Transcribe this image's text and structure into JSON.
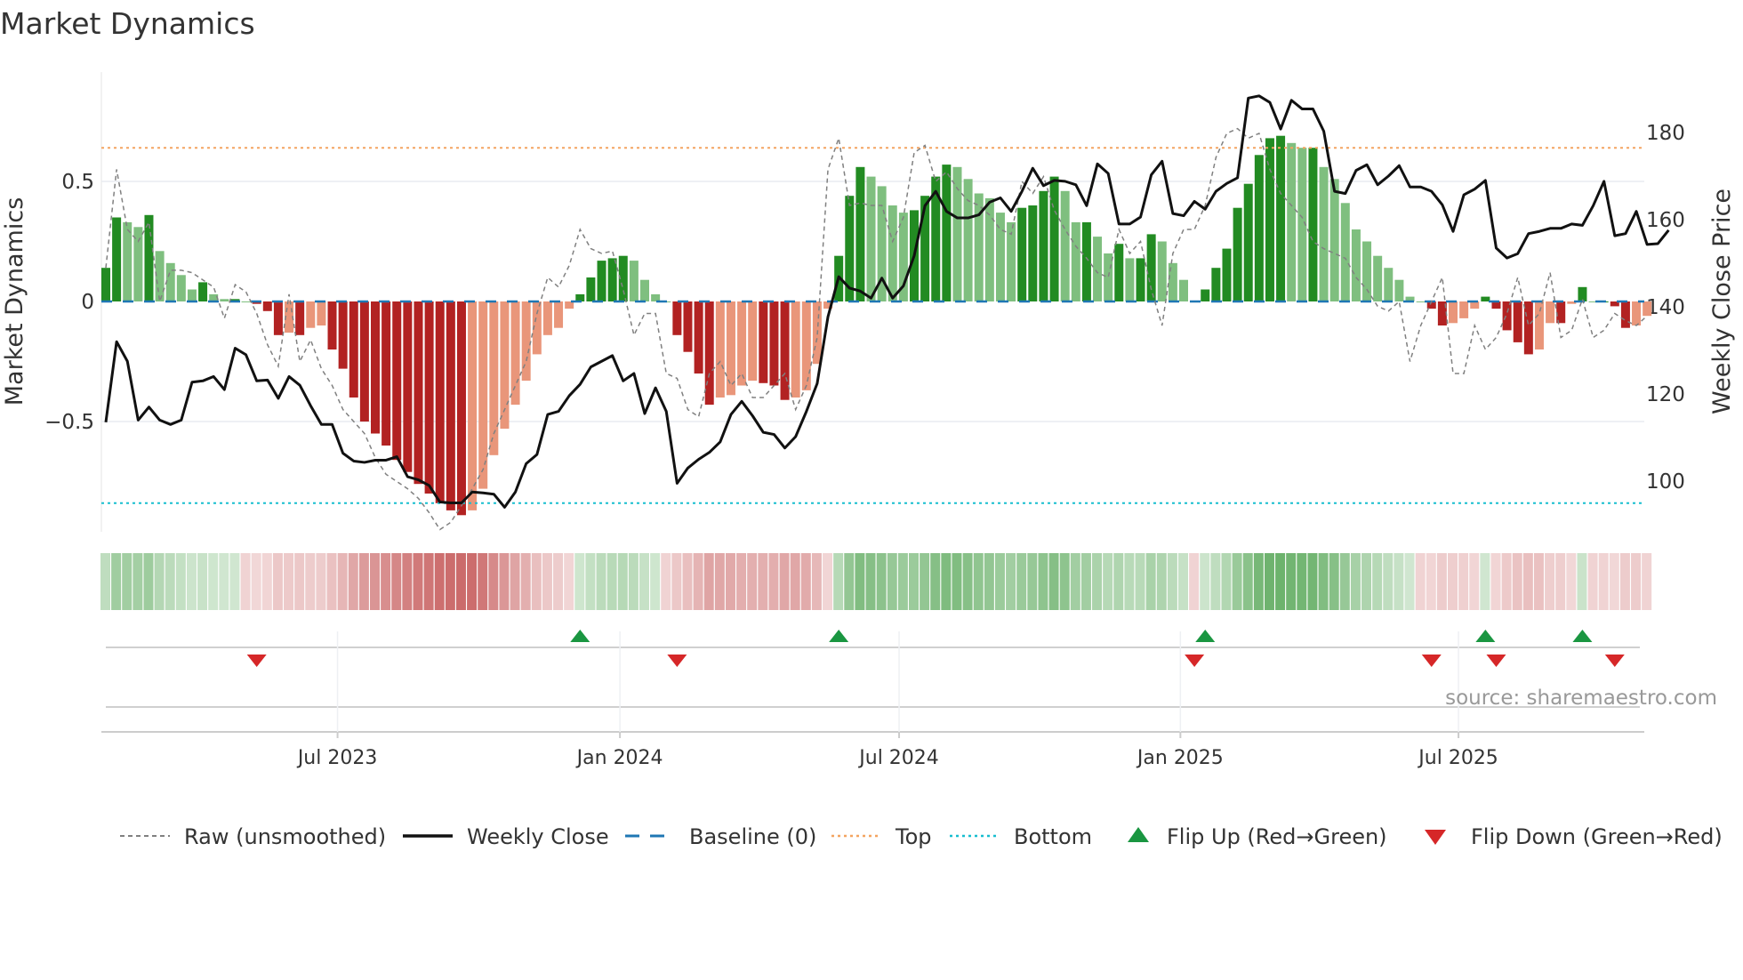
{
  "title": "Market Dynamics",
  "source": "source: sharemaestro.com",
  "colors": {
    "up_strong": "#228b22",
    "up_weak": "#7fbf7f",
    "down_strong": "#b22222",
    "down_weak": "#e9967a",
    "top": "#f4a460",
    "bottom": "#17becf",
    "baseline": "#1f77b4",
    "flip_up": "#1a9641",
    "flip_down": "#d62728",
    "close": "#111111",
    "raw": "#808080"
  },
  "chart_data": {
    "type": "bar",
    "title": "Market Dynamics",
    "ylabel": "Market Dynamics",
    "y2label": "Weekly Close Price",
    "ylim": [
      -0.96,
      0.96
    ],
    "y2lim": [
      83,
      200
    ],
    "yticks": [
      {
        "v": 0.5,
        "label": "0.5"
      },
      {
        "v": 0,
        "label": "0"
      },
      {
        "v": -0.5,
        "label": "−0.5"
      }
    ],
    "y2ticks": [
      {
        "v": 180,
        "label": "180"
      },
      {
        "v": 160,
        "label": "160"
      },
      {
        "v": 140,
        "label": "140"
      },
      {
        "v": 120,
        "label": "120"
      },
      {
        "v": 100,
        "label": "100"
      }
    ],
    "xticks": [
      {
        "week": 21.5,
        "label": "Jul 2023"
      },
      {
        "week": 47.7,
        "label": "Jan 2024"
      },
      {
        "week": 73.6,
        "label": "Jul 2024"
      },
      {
        "week": 99.7,
        "label": "Jan 2025"
      },
      {
        "week": 125.5,
        "label": "Jul 2025"
      }
    ],
    "start_week": "2023-02-03",
    "top": 0.64,
    "bottom": -0.84,
    "baseline": 0,
    "momentum": [
      0.14,
      0.35,
      0.33,
      0.31,
      0.36,
      0.21,
      0.16,
      0.11,
      0.05,
      0.08,
      0.03,
      0.01,
      0.01,
      0.0,
      -0.01,
      -0.04,
      -0.14,
      -0.13,
      -0.14,
      -0.11,
      -0.1,
      -0.2,
      -0.28,
      -0.4,
      -0.5,
      -0.55,
      -0.6,
      -0.66,
      -0.71,
      -0.76,
      -0.8,
      -0.84,
      -0.87,
      -0.89,
      -0.87,
      -0.78,
      -0.64,
      -0.53,
      -0.43,
      -0.33,
      -0.22,
      -0.14,
      -0.11,
      -0.03,
      0.03,
      0.1,
      0.17,
      0.18,
      0.19,
      0.17,
      0.09,
      0.03,
      0.0,
      -0.14,
      -0.21,
      -0.3,
      -0.43,
      -0.4,
      -0.39,
      -0.35,
      -0.33,
      -0.34,
      -0.35,
      -0.41,
      -0.4,
      -0.37,
      -0.26,
      -0.03,
      0.19,
      0.44,
      0.56,
      0.52,
      0.48,
      0.4,
      0.37,
      0.38,
      0.44,
      0.52,
      0.57,
      0.56,
      0.51,
      0.45,
      0.43,
      0.37,
      0.33,
      0.39,
      0.4,
      0.46,
      0.52,
      0.46,
      0.33,
      0.33,
      0.27,
      0.2,
      0.24,
      0.18,
      0.18,
      0.28,
      0.25,
      0.16,
      0.09,
      0.0,
      0.05,
      0.14,
      0.22,
      0.39,
      0.49,
      0.61,
      0.68,
      0.69,
      0.66,
      0.64,
      0.64,
      0.56,
      0.51,
      0.41,
      0.3,
      0.25,
      0.19,
      0.14,
      0.09,
      0.02,
      0.0,
      -0.03,
      -0.1,
      -0.09,
      -0.07,
      -0.03,
      0.02,
      -0.03,
      -0.12,
      -0.17,
      -0.22,
      -0.2,
      -0.09,
      -0.09,
      -0.01,
      0.06,
      0.0,
      0.0,
      -0.02,
      -0.11,
      -0.1,
      -0.06
    ],
    "raw": [
      0.14,
      0.55,
      0.3,
      0.25,
      0.33,
      0.0,
      0.13,
      0.13,
      0.12,
      0.09,
      0.06,
      -0.07,
      0.07,
      0.04,
      -0.05,
      -0.18,
      -0.27,
      0.03,
      -0.25,
      -0.16,
      -0.28,
      -0.35,
      -0.45,
      -0.5,
      -0.55,
      -0.65,
      -0.72,
      -0.75,
      -0.78,
      -0.82,
      -0.88,
      -0.95,
      -0.92,
      -0.85,
      -0.78,
      -0.7,
      -0.55,
      -0.45,
      -0.35,
      -0.25,
      -0.05,
      0.1,
      0.06,
      0.15,
      0.3,
      0.22,
      0.2,
      0.21,
      0.05,
      -0.14,
      -0.05,
      -0.05,
      -0.3,
      -0.32,
      -0.45,
      -0.48,
      -0.3,
      -0.25,
      -0.35,
      -0.3,
      -0.4,
      -0.4,
      -0.35,
      -0.3,
      -0.45,
      -0.35,
      -0.15,
      0.55,
      0.68,
      0.4,
      0.41,
      0.4,
      0.4,
      0.25,
      0.35,
      0.62,
      0.65,
      0.5,
      0.54,
      0.47,
      0.42,
      0.4,
      0.36,
      0.3,
      0.28,
      0.5,
      0.45,
      0.52,
      0.38,
      0.3,
      0.23,
      0.18,
      0.12,
      0.1,
      0.3,
      0.2,
      0.25,
      0.05,
      -0.1,
      0.2,
      0.3,
      0.3,
      0.4,
      0.6,
      0.7,
      0.72,
      0.68,
      0.7,
      0.55,
      0.45,
      0.4,
      0.35,
      0.25,
      0.22,
      0.2,
      0.18,
      0.1,
      0.05,
      -0.02,
      -0.04,
      0.0,
      -0.25,
      -0.1,
      0.0,
      0.1,
      -0.3,
      -0.3,
      -0.1,
      -0.2,
      -0.15,
      -0.05,
      0.1,
      -0.1,
      -0.05,
      0.12,
      -0.15,
      -0.12,
      0.01,
      -0.15,
      -0.12,
      -0.05,
      -0.08,
      -0.1,
      -0.06
    ],
    "close": [
      113.5,
      132,
      127.5,
      114,
      117,
      114,
      113,
      114,
      122.7,
      123,
      124,
      121,
      130.5,
      129,
      123,
      123.2,
      119,
      124,
      122,
      117.3,
      113,
      113,
      106.4,
      104.6,
      104.3,
      104.8,
      104.8,
      105.6,
      101,
      100.3,
      99,
      95.2,
      95,
      95,
      97.5,
      97.3,
      97,
      94,
      97.5,
      104,
      106.1,
      115.3,
      116,
      119.6,
      122.2,
      126.2,
      127.5,
      128.8,
      123,
      124.7,
      115.5,
      121.4,
      116,
      99.5,
      103,
      105,
      106.6,
      109,
      115.3,
      118.3,
      115,
      111.2,
      110.7,
      107.6,
      110.2,
      116,
      122.4,
      137.7,
      146.9,
      144.3,
      143.6,
      142,
      146.6,
      142,
      144.8,
      151.7,
      163.2,
      166.5,
      161.9,
      160.4,
      160.4,
      161.1,
      164,
      165,
      161.9,
      166.5,
      171.8,
      167.8,
      169,
      168.8,
      168,
      163.2,
      172.8,
      170.6,
      159,
      159,
      160.6,
      170.3,
      173.4,
      161.4,
      160.9,
      164.2,
      162.4,
      166.5,
      168.3,
      169.6,
      187.9,
      188.4,
      186.9,
      180.8,
      187.4,
      185.4,
      185.4,
      180.3,
      166.5,
      166,
      171.3,
      172.6,
      168,
      170,
      172.4,
      167.5,
      167.5,
      166.5,
      163.4,
      157.3,
      165.7,
      167,
      169,
      153.5,
      151.2,
      152.2,
      156.8,
      157.3,
      158,
      158,
      159,
      158.7,
      163.2,
      168.8,
      156.3,
      156.8,
      161.9,
      154.3,
      154.5,
      157.6
    ],
    "flip_up_weeks": [
      44,
      68,
      102,
      128,
      137
    ],
    "flip_down_weeks": [
      14,
      53,
      101,
      123,
      129,
      140
    ],
    "legend": [
      {
        "key": "raw",
        "label": "Raw (unsmoothed)"
      },
      {
        "key": "close",
        "label": "Weekly Close"
      },
      {
        "key": "baseline",
        "label": "Baseline (0)"
      },
      {
        "key": "top",
        "label": "Top"
      },
      {
        "key": "bottom",
        "label": "Bottom"
      },
      {
        "key": "flip_up",
        "label": "Flip Up (Red→Green)"
      },
      {
        "key": "flip_down",
        "label": "Flip Down (Green→Red)"
      }
    ]
  }
}
